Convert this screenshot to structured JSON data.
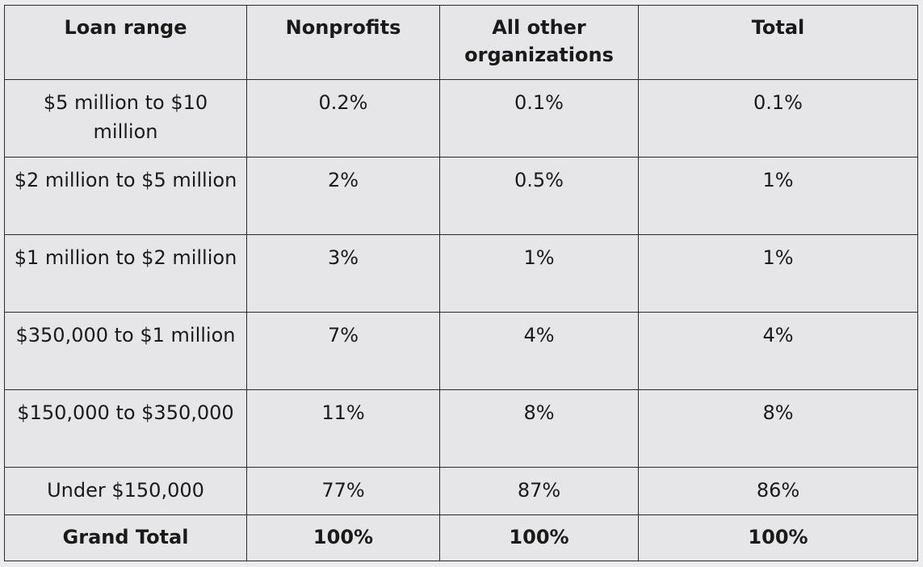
{
  "table": {
    "headers": [
      "Loan range",
      "Nonprofits",
      "All other organizations",
      "Total"
    ],
    "header_lines": {
      "col2_line1": "All other",
      "col2_line2": "organizations"
    },
    "rows": [
      {
        "range": "$5 million to $10 million",
        "nonprofits": "0.2%",
        "other": "0.1%",
        "total": "0.1%"
      },
      {
        "range": "$2 million to $5 million",
        "nonprofits": "2%",
        "other": "0.5%",
        "total": "1%"
      },
      {
        "range": "$1 million to $2 million",
        "nonprofits": "3%",
        "other": "1%",
        "total": "1%"
      },
      {
        "range": "$350,000 to $1 million",
        "nonprofits": "7%",
        "other": "4%",
        "total": "4%"
      },
      {
        "range": "$150,000 to $350,000",
        "nonprofits": "11%",
        "other": "8%",
        "total": "8%"
      },
      {
        "range": "Under $150,000",
        "nonprofits": "77%",
        "other": "87%",
        "total": "86%"
      }
    ],
    "grand_total": {
      "range": "Grand Total",
      "nonprofits": "100%",
      "other": "100%",
      "total": "100%"
    }
  }
}
